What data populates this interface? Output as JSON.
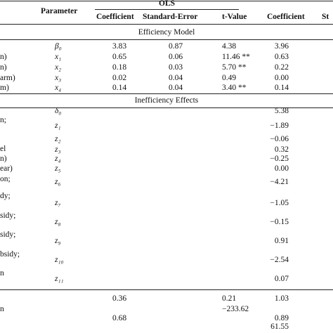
{
  "table": {
    "header": {
      "parameter": "Parameter",
      "group": "OLS",
      "columns": [
        "Coefficient",
        "Standard-Error",
        "t-Value",
        "Coefficient",
        "St"
      ]
    },
    "sections": [
      {
        "title": "Efficiency Model",
        "rows": [
          {
            "parameter": "β₀",
            "cells": [
              "3.83",
              "0.87",
              "4.38",
              "3.96"
            ]
          },
          {
            "label": "n)",
            "parameter": "x₁",
            "cells": [
              "0.65",
              "0.06",
              "11.46 **",
              "0.63"
            ]
          },
          {
            "label": "n)",
            "parameter": "x₂",
            "cells": [
              "0.18",
              "0.03",
              "5.70 **",
              "0.22"
            ]
          },
          {
            "label": "arm)",
            "parameter": "x₃",
            "cells": [
              "0.02",
              "0.04",
              "0.49",
              "0.00"
            ]
          },
          {
            "label": "m)",
            "parameter": "x₄",
            "cells": [
              "0.14",
              "0.04",
              "3.40 **",
              "0.14"
            ]
          }
        ]
      },
      {
        "title": "Inefficiency Effects",
        "rows": [
          {
            "parameter": "δ₀",
            "cells": [
              null,
              null,
              null,
              "5.38"
            ]
          },
          {
            "label": "n;",
            "parameter": "z₁",
            "cells": [
              null,
              null,
              null,
              "−1.89"
            ]
          },
          {
            "parameter": "z₂",
            "cells": [
              null,
              null,
              null,
              "−0.06"
            ]
          },
          {
            "label": "el",
            "parameter": "z₃",
            "cells": [
              null,
              null,
              null,
              "0.32"
            ]
          },
          {
            "label": "n)",
            "parameter": "z₄",
            "cells": [
              null,
              null,
              null,
              "−0.25"
            ]
          },
          {
            "label": "ear)",
            "parameter": "z₅",
            "cells": [
              null,
              null,
              null,
              "0.00"
            ]
          },
          {
            "label": "on;",
            "parameter": "z₆",
            "cells": [
              null,
              null,
              null,
              "−4.21"
            ]
          },
          {
            "label": "dy;",
            "parameter": "z₇",
            "cells": [
              null,
              null,
              null,
              "−1.05"
            ]
          },
          {
            "label": "sidy;",
            "parameter": "z₈",
            "cells": [
              null,
              null,
              null,
              "−0.15"
            ]
          },
          {
            "label": "sidy;",
            "parameter": "z₉",
            "cells": [
              null,
              null,
              null,
              "0.91"
            ]
          },
          {
            "label": "bsidy;",
            "parameter": "z₁₀",
            "cells": [
              null,
              null,
              null,
              "−2.54"
            ]
          },
          {
            "label": "n",
            "parameter": "z₁₁",
            "cells": [
              null,
              null,
              null,
              "0.07"
            ]
          }
        ]
      }
    ],
    "footer_rows": [
      {
        "cells": [
          "0.36",
          null,
          "0.21",
          "1.03"
        ]
      },
      {
        "label": "n",
        "cells": [
          null,
          null,
          "−233.62",
          null
        ]
      },
      {
        "cells": [
          "0.68",
          null,
          null,
          "0.89"
        ]
      },
      {
        "cells": [
          null,
          null,
          null,
          "61.55"
        ]
      }
    ]
  }
}
